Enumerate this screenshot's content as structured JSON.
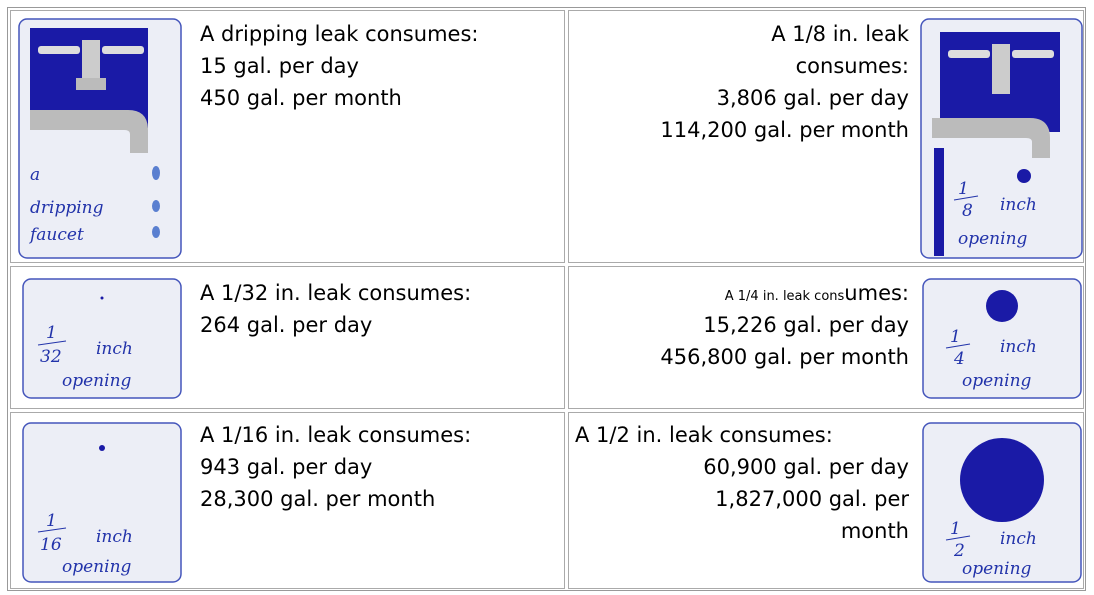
{
  "rows": [
    {
      "left": {
        "caption": [
          "a",
          "dripping",
          "faucet"
        ],
        "lines": [
          "A dripping leak consumes:",
          "15 gal. per day",
          "450 gal. per month"
        ]
      },
      "right": {
        "lines": [
          "A 1/8 in. leak",
          "consumes:",
          "3,806 gal. per day",
          "114,200 gal. per month"
        ],
        "caption": {
          "numerator": "1",
          "denominator": "8",
          "unit": "inch",
          "word": "opening"
        }
      }
    },
    {
      "left": {
        "caption": {
          "numerator": "1",
          "denominator": "32",
          "unit": "inch",
          "word": "opening"
        },
        "lines": [
          "A 1/32 in. leak consumes:",
          "264 gal. per day"
        ]
      },
      "right": {
        "first_line": [
          "A 1/4 in. leak cons",
          "umes:"
        ],
        "lines": [
          "15,226 gal. per day",
          "456,800 gal. per month"
        ],
        "caption": {
          "numerator": "1",
          "denominator": "4",
          "unit": "inch",
          "word": "opening"
        }
      }
    },
    {
      "left": {
        "caption": {
          "numerator": "1",
          "denominator": "16",
          "unit": "inch",
          "word": "opening"
        },
        "lines": [
          "A 1/16 in. leak consumes:",
          "943 gal. per day",
          "28,300 gal. per month"
        ]
      },
      "right": {
        "first_line": "A 1/2 in. leak consumes:",
        "lines": [
          "60,900 gal. per day",
          "1,827,000 gal. per",
          "month"
        ],
        "caption": {
          "numerator": "1",
          "denominator": "2",
          "unit": "inch",
          "word": "opening"
        }
      }
    }
  ]
}
